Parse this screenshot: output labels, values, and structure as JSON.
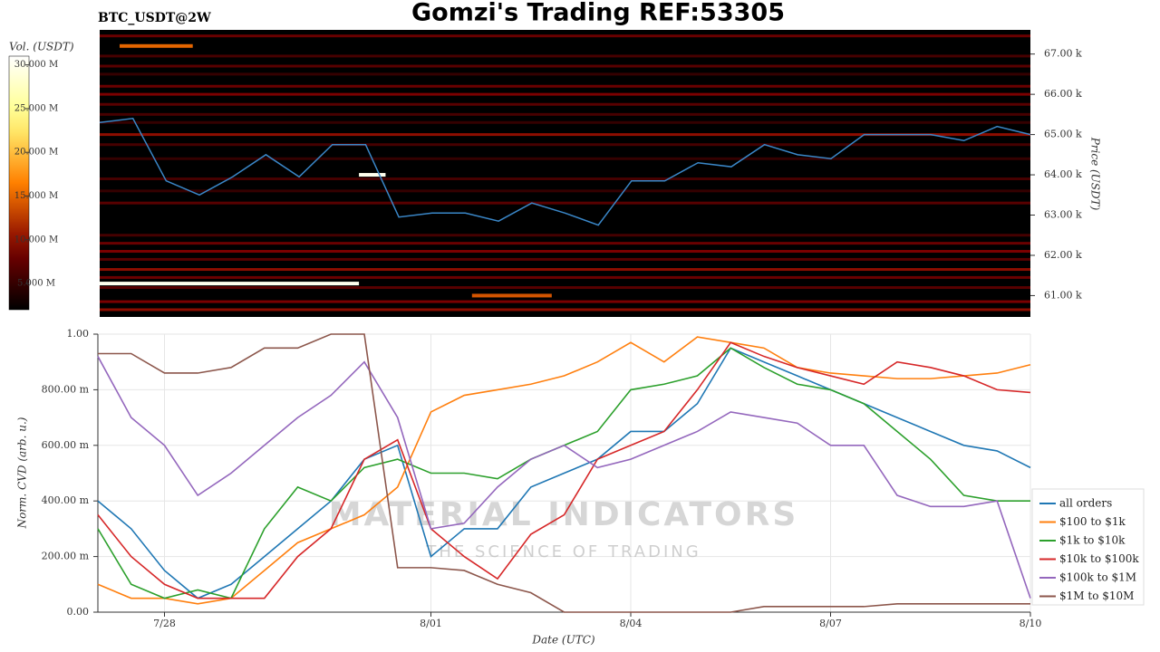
{
  "title": "Gomzi's Trading REF:53305",
  "watermark": {
    "main": "MATERIAL INDICATORS",
    "sub": "THE SCIENCE OF TRADING"
  },
  "chart_data": [
    {
      "type": "heatmap",
      "title": "BTC_USDT@2W",
      "colorbar": {
        "label": "Vol. (USDT)",
        "clim": [
          2,
          31
        ],
        "ticks": [
          {
            "value": 5,
            "label": "5.000 M"
          },
          {
            "value": 10,
            "label": "10.000 M"
          },
          {
            "value": 15,
            "label": "15.000 M"
          },
          {
            "value": 20,
            "label": "20.000 M"
          },
          {
            "value": 25,
            "label": "25.000 M"
          },
          {
            "value": 30,
            "label": "30.000 M"
          }
        ]
      },
      "ylabel": "Price (USDT)",
      "ylim": [
        60.47,
        67.6
      ],
      "yticks": [
        {
          "value": 61,
          "label": "61.00 k"
        },
        {
          "value": 62,
          "label": "62.00 k"
        },
        {
          "value": 63,
          "label": "63.00 k"
        },
        {
          "value": 64,
          "label": "64.00 k"
        },
        {
          "value": 65,
          "label": "65.00 k"
        },
        {
          "value": 66,
          "label": "66.00 k"
        },
        {
          "value": 67,
          "label": "67.00 k"
        }
      ],
      "xlim": [
        0,
        14
      ],
      "rows": {
        "prices": [
          67.45,
          66.95,
          66.7,
          66.5,
          66.2,
          66.0,
          65.75,
          65.5,
          65.3,
          65.0,
          64.75,
          64.4,
          63.9,
          63.6,
          63.3,
          62.5,
          62.3,
          62.1,
          61.9,
          61.65,
          61.45,
          61.2,
          60.85,
          60.65
        ],
        "volumes": [
          8,
          6,
          7,
          5,
          8,
          9,
          7,
          6,
          5,
          10,
          6,
          5,
          6,
          5,
          7,
          6,
          8,
          9,
          7,
          10,
          8,
          7,
          9,
          10
        ]
      },
      "segments": [
        {
          "price": 67.2,
          "x": [
            0.3,
            1.4
          ],
          "volume": 15
        },
        {
          "price": 61.3,
          "x": [
            0,
            3.9
          ],
          "volume": 30
        },
        {
          "price": 64.0,
          "x": [
            3.9,
            4.3
          ],
          "volume": 30
        },
        {
          "price": 61.0,
          "x": [
            5.6,
            6.8
          ],
          "volume": 14
        }
      ],
      "price_line": {
        "color": "#3a87c8",
        "x": [
          0,
          0.5,
          1,
          1.5,
          2,
          2.5,
          3,
          3.5,
          4,
          4.5,
          5,
          5.5,
          6,
          6.5,
          7,
          7.5,
          8,
          8.5,
          9,
          9.5,
          10,
          10.5,
          11,
          11.5,
          12,
          12.5,
          13,
          13.5,
          14
        ],
        "values": [
          65.3,
          65.4,
          63.85,
          63.5,
          63.95,
          64.5,
          63.95,
          64.75,
          64.75,
          62.95,
          63.05,
          63.05,
          62.85,
          63.3,
          63.05,
          62.75,
          63.85,
          63.85,
          64.3,
          64.2,
          64.75,
          64.5,
          64.4,
          65.0,
          65.0,
          65.0,
          64.85,
          65.2,
          65.0
        ]
      }
    },
    {
      "type": "line",
      "ylabel": "Norm. CVD (arb. u.)",
      "xlabel": "Date (UTC)",
      "xlim": [
        0,
        14
      ],
      "xticks": [
        {
          "value": 1,
          "label": "7/28"
        },
        {
          "value": 5,
          "label": "8/01"
        },
        {
          "value": 8,
          "label": "8/04"
        },
        {
          "value": 11,
          "label": "8/07"
        },
        {
          "value": 14,
          "label": "8/10"
        }
      ],
      "ylim": [
        0,
        1
      ],
      "yticks": [
        {
          "value": 0,
          "label": "0.00"
        },
        {
          "value": 0.2,
          "label": "200.00 m"
        },
        {
          "value": 0.4,
          "label": "400.00 m"
        },
        {
          "value": 0.6,
          "label": "600.00 m"
        },
        {
          "value": 0.8,
          "label": "800.00 m"
        },
        {
          "value": 1,
          "label": "1.00"
        }
      ],
      "grid": true,
      "x": [
        0,
        0.5,
        1,
        1.5,
        2,
        2.5,
        3,
        3.5,
        4,
        4.5,
        5,
        5.5,
        6,
        6.5,
        7,
        7.5,
        8,
        8.5,
        9,
        9.5,
        10,
        10.5,
        11,
        11.5,
        12,
        12.5,
        13,
        13.5,
        14
      ],
      "series": [
        {
          "name": "all orders",
          "color": "#1f77b4",
          "values": [
            0.4,
            0.3,
            0.15,
            0.05,
            0.1,
            0.2,
            0.3,
            0.4,
            0.55,
            0.6,
            0.2,
            0.3,
            0.3,
            0.45,
            0.5,
            0.55,
            0.65,
            0.65,
            0.75,
            0.95,
            0.9,
            0.85,
            0.8,
            0.75,
            0.7,
            0.65,
            0.6,
            0.58,
            0.52
          ]
        },
        {
          "name": "$100 to $1k",
          "color": "#ff7f0e",
          "values": [
            0.1,
            0.05,
            0.05,
            0.03,
            0.05,
            0.15,
            0.25,
            0.3,
            0.35,
            0.45,
            0.72,
            0.78,
            0.8,
            0.82,
            0.85,
            0.9,
            0.97,
            0.9,
            0.99,
            0.97,
            0.95,
            0.88,
            0.86,
            0.85,
            0.84,
            0.84,
            0.85,
            0.86,
            0.89
          ]
        },
        {
          "name": "$1k to $10k",
          "color": "#2ca02c",
          "values": [
            0.3,
            0.1,
            0.05,
            0.08,
            0.05,
            0.3,
            0.45,
            0.4,
            0.52,
            0.55,
            0.5,
            0.5,
            0.48,
            0.55,
            0.6,
            0.65,
            0.8,
            0.82,
            0.85,
            0.95,
            0.88,
            0.82,
            0.8,
            0.75,
            0.65,
            0.55,
            0.42,
            0.4,
            0.4
          ]
        },
        {
          "name": "$10k to $100k",
          "color": "#d62728",
          "values": [
            0.35,
            0.2,
            0.1,
            0.05,
            0.05,
            0.05,
            0.2,
            0.3,
            0.55,
            0.62,
            0.3,
            0.2,
            0.12,
            0.28,
            0.35,
            0.55,
            0.6,
            0.65,
            0.8,
            0.97,
            0.92,
            0.88,
            0.85,
            0.82,
            0.9,
            0.88,
            0.85,
            0.8,
            0.79
          ]
        },
        {
          "name": "$100k to $1M",
          "color": "#9467bd",
          "values": [
            0.92,
            0.7,
            0.6,
            0.42,
            0.5,
            0.6,
            0.7,
            0.78,
            0.9,
            0.7,
            0.3,
            0.32,
            0.45,
            0.55,
            0.6,
            0.52,
            0.55,
            0.6,
            0.65,
            0.72,
            0.7,
            0.68,
            0.6,
            0.6,
            0.42,
            0.38,
            0.38,
            0.4,
            0.05
          ]
        },
        {
          "name": "$1M to $10M",
          "color": "#8c564b",
          "values": [
            0.93,
            0.93,
            0.86,
            0.86,
            0.88,
            0.95,
            0.95,
            1.0,
            1.0,
            0.16,
            0.16,
            0.15,
            0.1,
            0.07,
            0.0,
            0.0,
            0.0,
            0.0,
            0.0,
            0.0,
            0.02,
            0.02,
            0.02,
            0.02,
            0.03,
            0.03,
            0.03,
            0.03,
            0.03
          ]
        }
      ]
    }
  ]
}
